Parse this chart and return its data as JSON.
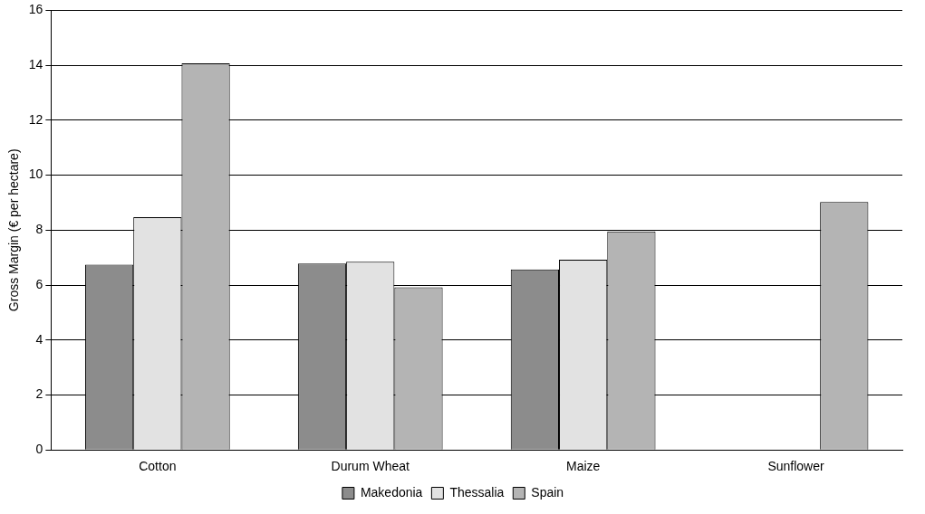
{
  "chart_data": {
    "type": "bar",
    "ylabel": "Gross Margin (€ per hectare)",
    "categories": [
      "Cotton",
      "Durum Wheat",
      "Maize",
      "Sunflower"
    ],
    "series": [
      {
        "name": "Makedonia",
        "color": "#8c8c8c",
        "values": [
          6.74,
          6.78,
          6.57,
          null
        ]
      },
      {
        "name": "Thessalia",
        "color": "#e2e2e2",
        "values": [
          8.47,
          6.85,
          6.92,
          null
        ]
      },
      {
        "name": "Spain",
        "color": "#b4b4b4",
        "values": [
          14.07,
          5.92,
          7.95,
          9.02
        ]
      }
    ],
    "ylim": [
      0,
      16
    ],
    "yticks": [
      0,
      2,
      4,
      6,
      8,
      10,
      12,
      14,
      16
    ],
    "grid": "y",
    "legend": "bottom"
  }
}
